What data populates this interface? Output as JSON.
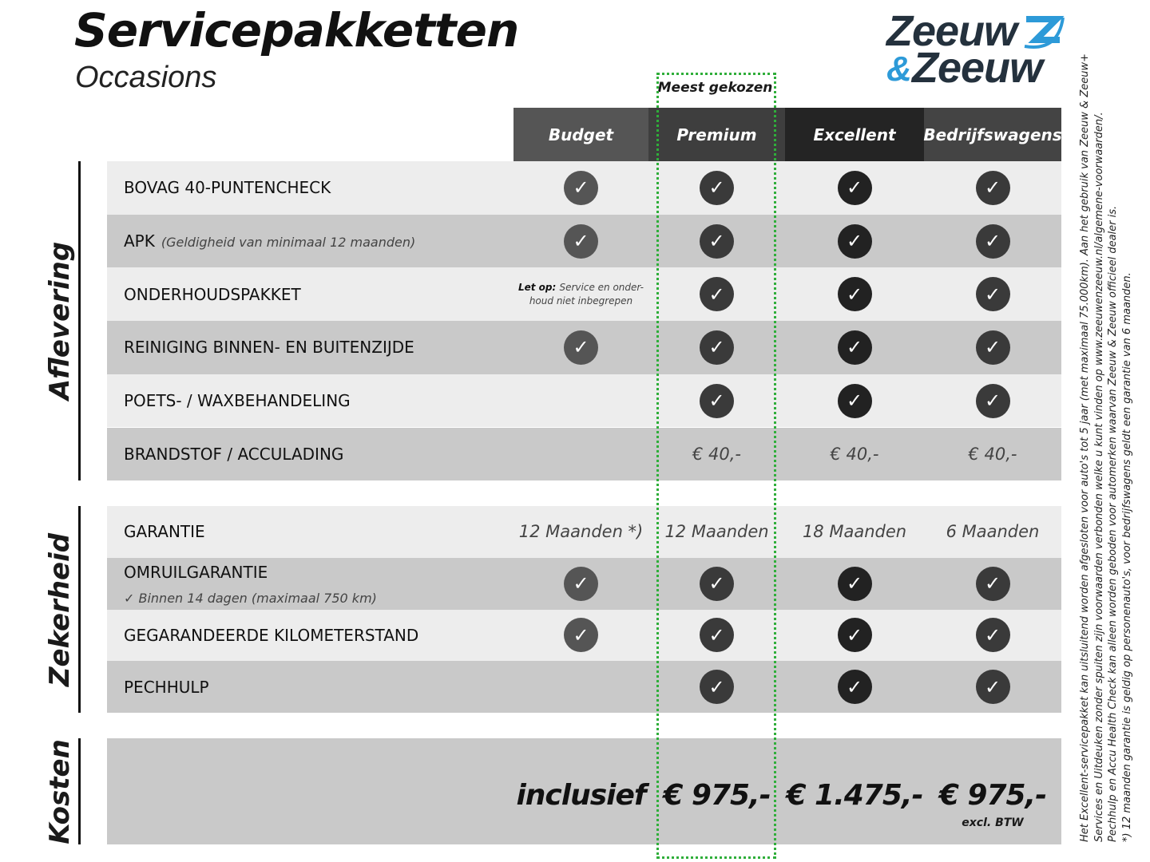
{
  "title": "Servicepakketten",
  "subtitle": "Occasions",
  "logo": {
    "line1": "Zeeuw",
    "amp": "&",
    "line2": "Zeeuw",
    "brand_dark": "#24313d",
    "brand_blue": "#2d9ad8"
  },
  "highlight": {
    "label": "Meest gekozen",
    "color": "#2fae3a"
  },
  "columns": [
    {
      "label": "Budget",
      "header_color": "#555555",
      "check_color": "#555555"
    },
    {
      "label": "Premium",
      "header_color": "#3e3e3e",
      "check_color": "#3a3a3a"
    },
    {
      "label": "Excellent",
      "header_color": "#242424",
      "check_color": "#222222"
    },
    {
      "label": "Bedrijfswagens",
      "header_color": "#444444",
      "check_color": "#3a3a3a"
    }
  ],
  "sections": [
    {
      "name": "Aflevering",
      "rows": [
        {
          "label": "BOVAG 40-PUNTENCHECK",
          "cells": [
            "check",
            "check",
            "check",
            "check"
          ]
        },
        {
          "label": "APK",
          "note": "(Geldigheid van minimaal 12 maanden)",
          "cells": [
            "check",
            "check",
            "check",
            "check"
          ]
        },
        {
          "label": "ONDERHOUDSPAKKET",
          "cells": [
            {
              "bold": "Let op:",
              "text": "Service en onder-",
              "text2": "houd niet inbegrepen"
            },
            "check",
            "check",
            "check"
          ]
        },
        {
          "label": "REINIGING BINNEN- EN BUITENZIJDE",
          "cells": [
            "check",
            "check",
            "check",
            "check"
          ]
        },
        {
          "label": "POETS- / WAXBEHANDELING",
          "cells": [
            "",
            "check",
            "check",
            "check"
          ]
        },
        {
          "label": "BRANDSTOF / ACCULADING",
          "cells": [
            "",
            "€ 40,-",
            "€ 40,-",
            "€ 40,-"
          ]
        }
      ]
    },
    {
      "name": "Zekerheid",
      "rows": [
        {
          "label": "GARANTIE",
          "cells": [
            "12 Maanden *)",
            "12 Maanden",
            "18 Maanden",
            "6 Maanden"
          ]
        },
        {
          "label": "OMRUILGARANTIE",
          "sub": "✓   Binnen 14 dagen (maximaal 750 km)",
          "cells": [
            "check",
            "check",
            "check",
            "check"
          ]
        },
        {
          "label": "GEGARANDEERDE KILOMETERSTAND",
          "cells": [
            "check",
            "check",
            "check",
            "check"
          ]
        },
        {
          "label": "PECHHULP",
          "cells": [
            "",
            "check",
            "check",
            "check"
          ]
        }
      ]
    },
    {
      "name": "Kosten",
      "prices": [
        "inclusief",
        "€ 975,-",
        "€ 1.475,-",
        "€ 975,-"
      ],
      "price_note": "excl. BTW"
    }
  ],
  "footnotes": [
    "Het Excellent-servicepakket kan uitsluitend worden afgesloten voor auto's tot 5 jaar (met maximaal 75.000km). Aan het gebruik van Zeeuw & Zeeuw+",
    "Services en Uitdeuken zonder spuiten zijn voorwaarden verbonden welke u kunt vinden op www.zeeuwenzeeuw.nl/algemene-voorwaarden/.",
    "Pechhulp en Accu Health Check kan alleen worden geboden voor automerken waarvan Zeeuw & Zeeuw officieel dealer is.",
    "*) 12 maanden garantie is geldig op personenauto's, voor bedrijfswagens geldt een garantie van 6 maanden."
  ],
  "row_colors": {
    "light": "#ededed",
    "dark": "#c9c9c9"
  }
}
